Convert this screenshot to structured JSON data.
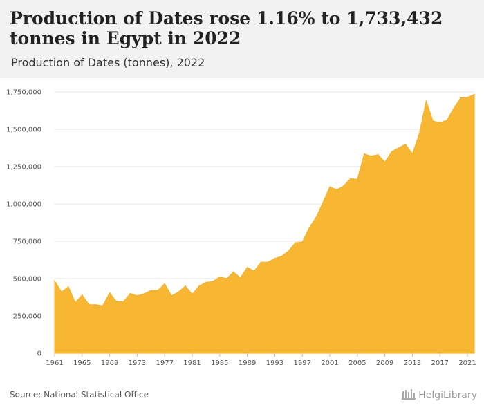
{
  "header": {
    "title": "Production of Dates rose 1.16% to 1,733,432 tonnes in Egypt in 2022",
    "subtitle": "Production of Dates (tonnes), 2022"
  },
  "footer": {
    "source": "Source: National Statistical Office",
    "brand": "HelgiLibrary"
  },
  "colors": {
    "area": "#f7b733",
    "grid": "#e6e6e6",
    "header_bg": "#f2f2f2"
  },
  "chart_data": {
    "type": "area",
    "title": "Production of Dates rose 1.16% to 1,733,432 tonnes in Egypt in 2022",
    "subtitle": "Production of Dates (tonnes), 2022",
    "xlabel": "",
    "ylabel": "",
    "ylim": [
      0,
      1750000
    ],
    "yticks": [
      0,
      250000,
      500000,
      750000,
      1000000,
      1250000,
      1500000,
      1750000
    ],
    "ytick_labels": [
      "0",
      "250,000",
      "500,000",
      "750,000",
      "1,000,000",
      "1,250,000",
      "1,500,000",
      "1,750,000"
    ],
    "xtick_labels": [
      "1961",
      "1965",
      "1969",
      "1973",
      "1977",
      "1981",
      "1985",
      "1989",
      "1993",
      "1997",
      "2001",
      "2005",
      "2009",
      "2013",
      "2017",
      "2021"
    ],
    "grid": true,
    "x": [
      1961,
      1962,
      1963,
      1964,
      1965,
      1966,
      1967,
      1968,
      1969,
      1970,
      1971,
      1972,
      1973,
      1974,
      1975,
      1976,
      1977,
      1978,
      1979,
      1980,
      1981,
      1982,
      1983,
      1984,
      1985,
      1986,
      1987,
      1988,
      1989,
      1990,
      1991,
      1992,
      1993,
      1994,
      1995,
      1996,
      1997,
      1998,
      1999,
      2000,
      2001,
      2002,
      2003,
      2004,
      2005,
      2006,
      2007,
      2008,
      2009,
      2010,
      2011,
      2012,
      2013,
      2014,
      2015,
      2016,
      2017,
      2018,
      2019,
      2020,
      2021,
      2022
    ],
    "values": [
      485000,
      410000,
      445000,
      340000,
      390000,
      325000,
      325000,
      318000,
      405000,
      345000,
      345000,
      400000,
      385000,
      398000,
      420000,
      420000,
      465000,
      385000,
      410000,
      450000,
      395000,
      450000,
      475000,
      480000,
      512000,
      500000,
      545000,
      505000,
      575000,
      550000,
      610000,
      610000,
      635000,
      650000,
      685000,
      740000,
      745000,
      840000,
      910000,
      1010000,
      1115000,
      1095000,
      1120000,
      1170000,
      1165000,
      1335000,
      1320000,
      1330000,
      1280000,
      1350000,
      1375000,
      1400000,
      1335000,
      1470000,
      1690000,
      1555000,
      1545000,
      1560000,
      1640000,
      1710000,
      1713000,
      1733432
    ]
  }
}
